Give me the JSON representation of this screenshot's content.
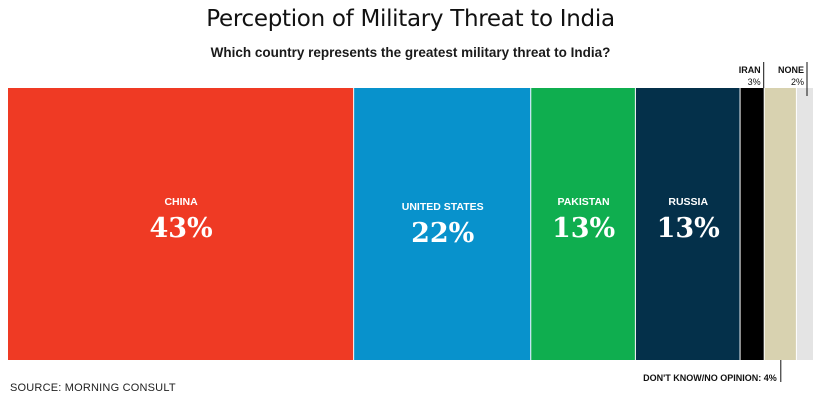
{
  "title": "Perception of Military Threat to India",
  "subtitle": "Which country represents the greatest military threat to India?",
  "source": "SOURCE: MORNING CONSULT",
  "chart_data": {
    "type": "bar",
    "layout": "stacked-100-percent-single-bar",
    "title": "Perception of Military Threat to India",
    "subtitle": "Which country represents the greatest military threat to India?",
    "categories": [
      "CHINA",
      "UNITED STATES",
      "PAKISTAN",
      "RUSSIA",
      "IRAN",
      "DON'T KNOW/NO OPINION",
      "NONE"
    ],
    "values": [
      43,
      22,
      13,
      13,
      3,
      4,
      2
    ],
    "value_labels": [
      "43%",
      "22%",
      "13%",
      "13%",
      "3%",
      "4%",
      "2%"
    ],
    "combined_label": "DON'T KNOW/NO OPINION: 4%",
    "colors": [
      "#ef3a24",
      "#0892cc",
      "#0fae4f",
      "#04304a",
      "#000000",
      "#d8d2b0",
      "#e4e4e4"
    ],
    "unit": "%",
    "legend": "none",
    "grid": false
  }
}
